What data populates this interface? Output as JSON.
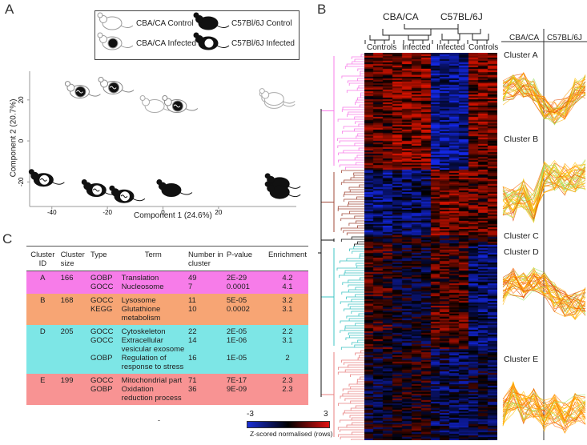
{
  "figure": {
    "panel_a": {
      "letter": "A",
      "legend": {
        "cba_control": "CBA/CA Control",
        "c57_control": "C57Bl/6J Control",
        "cba_infected": "CBA/CA Infected",
        "c57_infected": "C57Bl/6J Infected"
      }
    },
    "panel_b": {
      "letter": "B",
      "strain_cba": "CBA/CA",
      "strain_c57": "C57BL/6J",
      "groups": [
        "Controls",
        "Infected",
        "Infected",
        "Controls"
      ],
      "profile_header_left": "CBA/CA",
      "profile_header_right": "C57BL/6J",
      "clusters": [
        "Cluster A",
        "Cluster B",
        "Cluster C",
        "Cluster D",
        "Cluster E"
      ],
      "scale_min": "-3",
      "scale_mid": "0",
      "scale_max": "3",
      "scale_label": "Z-scored normalised (rows)"
    },
    "panel_c": {
      "letter": "C",
      "headers": {
        "cluster_id": "Cluster ID",
        "cluster_size": "Cluster size",
        "type": "Type",
        "term": "Term",
        "number": "Number in cluster",
        "pvalue": "P-value",
        "enrichment": "Enrichment"
      },
      "rows": [
        {
          "cluster": "A",
          "size": "166",
          "type": "GOBP",
          "term": "Translation",
          "number": "49",
          "pvalue": "2E-29",
          "enrichment": "4.2"
        },
        {
          "cluster": "",
          "size": "",
          "type": "GOCC",
          "term": "Nucleosome",
          "number": "7",
          "pvalue": "0.0001",
          "enrichment": "4.1"
        },
        {
          "cluster": "B",
          "size": "168",
          "type": "GOCC",
          "term": "Lysosome",
          "number": "11",
          "pvalue": "5E-05",
          "enrichment": "3.2"
        },
        {
          "cluster": "",
          "size": "",
          "type": "KEGG",
          "term": "Glutathione metabolism",
          "number": "10",
          "pvalue": "0.0002",
          "enrichment": "3.1"
        },
        {
          "cluster": "D",
          "size": "205",
          "type": "GOCC",
          "term": "Cytoskeleton",
          "number": "22",
          "pvalue": "2E-05",
          "enrichment": "2.2"
        },
        {
          "cluster": "",
          "size": "",
          "type": "GOCC",
          "term": "Extracellular vesicular exosome",
          "number": "14",
          "pvalue": "1E-06",
          "enrichment": "3.1"
        },
        {
          "cluster": "",
          "size": "",
          "type": "GOBP",
          "term": "Regulation of response to stress",
          "number": "16",
          "pvalue": "1E-05",
          "enrichment": "2"
        },
        {
          "cluster": "E",
          "size": "199",
          "type": "GOCC",
          "term": "Mitochondrial part",
          "number": "71",
          "pvalue": "7E-17",
          "enrichment": "2.3"
        },
        {
          "cluster": "",
          "size": "",
          "type": "GOBP",
          "term": "Oxidation reduction process",
          "number": "36",
          "pvalue": "9E-09",
          "enrichment": "2.3"
        }
      ],
      "footnote": "-"
    },
    "colors": {
      "cluster_a": "#f77ce9",
      "cluster_b": "#f7a574",
      "cluster_d": "#7de6e6",
      "cluster_e": "#f89393",
      "heat_low": "#1a2fd6",
      "heat_high": "#e01010"
    }
  },
  "chart_data": {
    "type": "scatter",
    "title": "",
    "xlabel": "Component 1 (24.6%)",
    "ylabel": "Component  2 (20.7%)",
    "xlim": [
      -48,
      48
    ],
    "ylim": [
      -32,
      34
    ],
    "xticks": [
      "-40",
      "-20",
      "0",
      "20"
    ],
    "yticks": [
      "20",
      "0",
      "-20"
    ],
    "series": [
      {
        "name": "CBA/CA Control",
        "points": [
          [
            -3,
            17
          ],
          [
            40,
            19
          ],
          [
            40,
            20.5
          ]
        ]
      },
      {
        "name": "CBA/CA Infected",
        "points": [
          [
            -30,
            24
          ],
          [
            -18,
            26
          ],
          [
            5,
            17
          ]
        ]
      },
      {
        "name": "C57Bl/6J Control",
        "points": [
          [
            3,
            -24
          ],
          [
            42,
            -21
          ],
          [
            42,
            -25
          ]
        ]
      },
      {
        "name": "C57Bl/6J Infected",
        "points": [
          [
            -43,
            -19
          ],
          [
            -24,
            -24
          ],
          [
            -14,
            -27
          ]
        ]
      }
    ]
  }
}
